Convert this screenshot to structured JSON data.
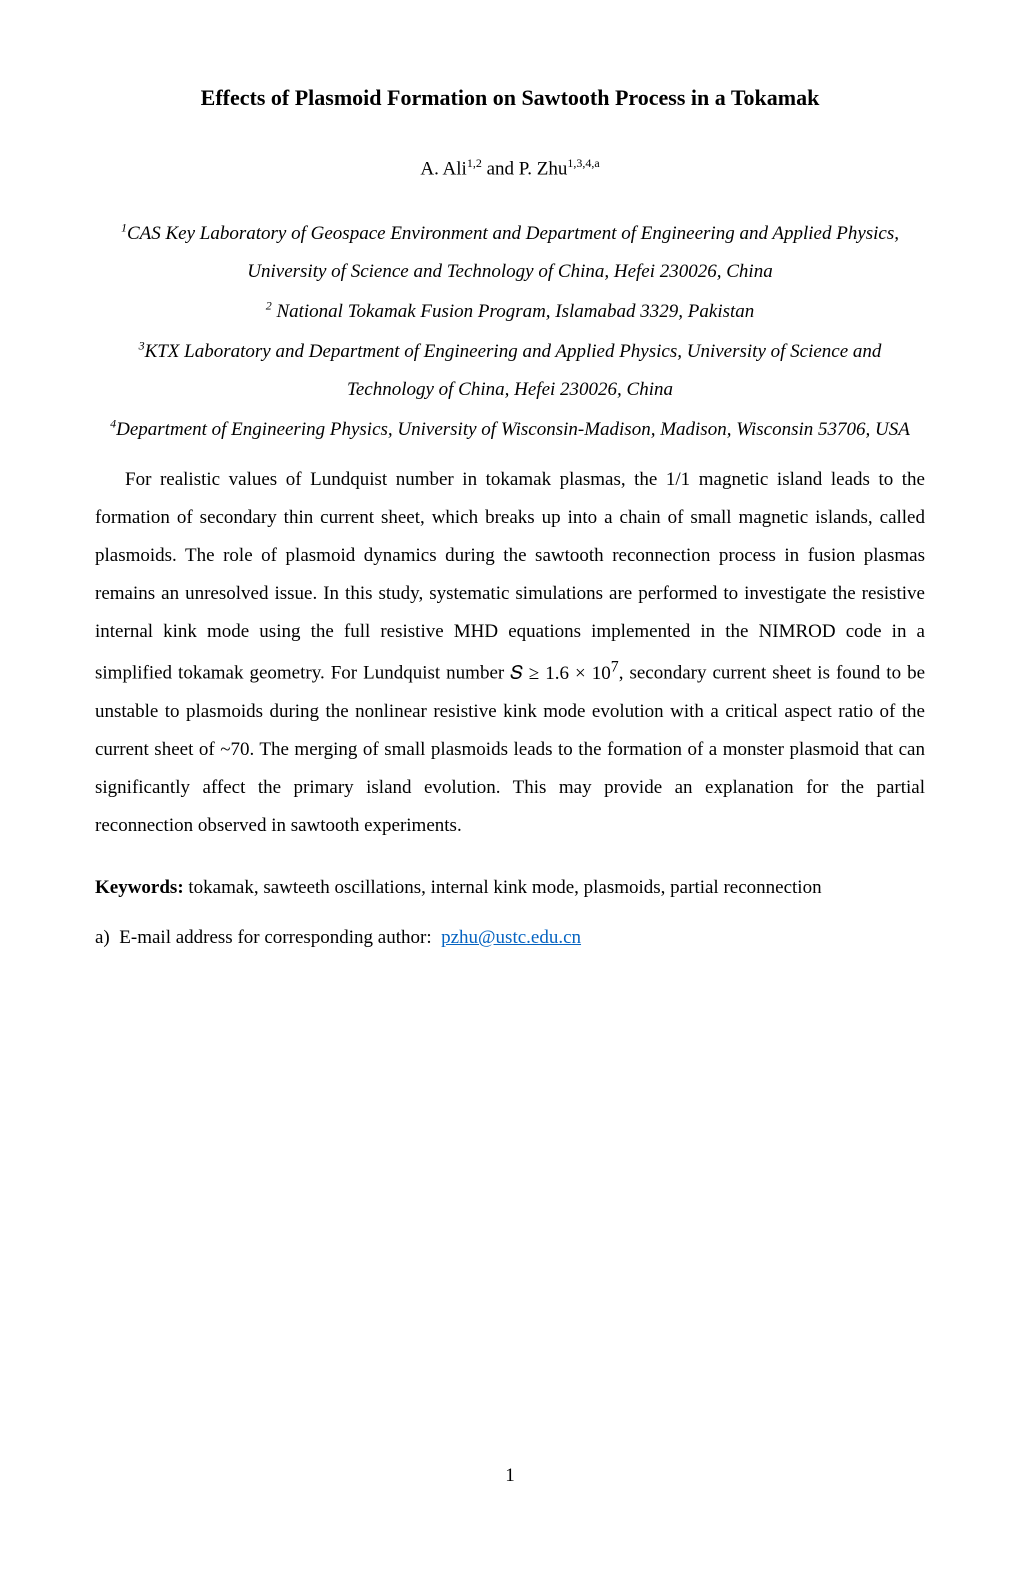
{
  "title": "Effects of Plasmoid Formation on Sawtooth Process in a Tokamak",
  "authors_html": "A. Ali<sup>1,2</sup> and P. Zhu<sup>1,3,4,a</sup>",
  "affiliations": [
    "<sup>1</sup>CAS Key Laboratory of Geospace Environment and Department of Engineering and Applied Physics, University of Science and Technology of China, Hefei 230026, China",
    "<sup>2</sup> National Tokamak Fusion Program, Islamabad 3329, Pakistan",
    "<sup>3</sup>KTX Laboratory and Department of Engineering and Applied Physics, University of Science and Technology of China, Hefei 230026, China",
    "<sup>4</sup>Department of Engineering Physics, University of Wisconsin-Madison, Madison, Wisconsin 53706, USA"
  ],
  "abstract_html": "For realistic values of Lundquist number in tokamak plasmas, the 1/1 magnetic island leads to the formation of secondary thin current sheet, which breaks up into a chain of small magnetic islands, called plasmoids. The role of plasmoid dynamics during the sawtooth reconnection process in fusion plasmas remains an unresolved issue. In this study, systematic simulations are performed to investigate the resistive internal kink mode using the full resistive MHD equations implemented in the NIMROD code in a simplified tokamak geometry. For Lundquist number <span class=\"math\">𝑆 ≥ 1.6 × 10<sup>7</sup></span>, secondary current sheet is found to be unstable to plasmoids during the nonlinear resistive kink mode evolution with a critical aspect ratio of the current sheet of <span class=\"math\">~70</span>. The merging of small plasmoids leads to the formation of a monster plasmoid that can significantly affect the primary island evolution. This may provide an explanation for the partial reconnection observed in sawtooth experiments.",
  "keywords": {
    "label": "Keywords:",
    "text": " tokamak, sawteeth oscillations, internal kink mode, plasmoids, partial reconnection"
  },
  "footnote": {
    "marker": "a)",
    "text": "E-mail address for corresponding author:",
    "email": "pzhu@ustc.edu.cn"
  },
  "page_number": "1",
  "colors": {
    "link": "#0563c1",
    "text": "#000000",
    "background": "#ffffff"
  },
  "typography": {
    "title_fontsize": 22,
    "body_fontsize": 19,
    "sup_fontsize": 12,
    "line_height": 2.0,
    "font_family": "Times New Roman"
  }
}
